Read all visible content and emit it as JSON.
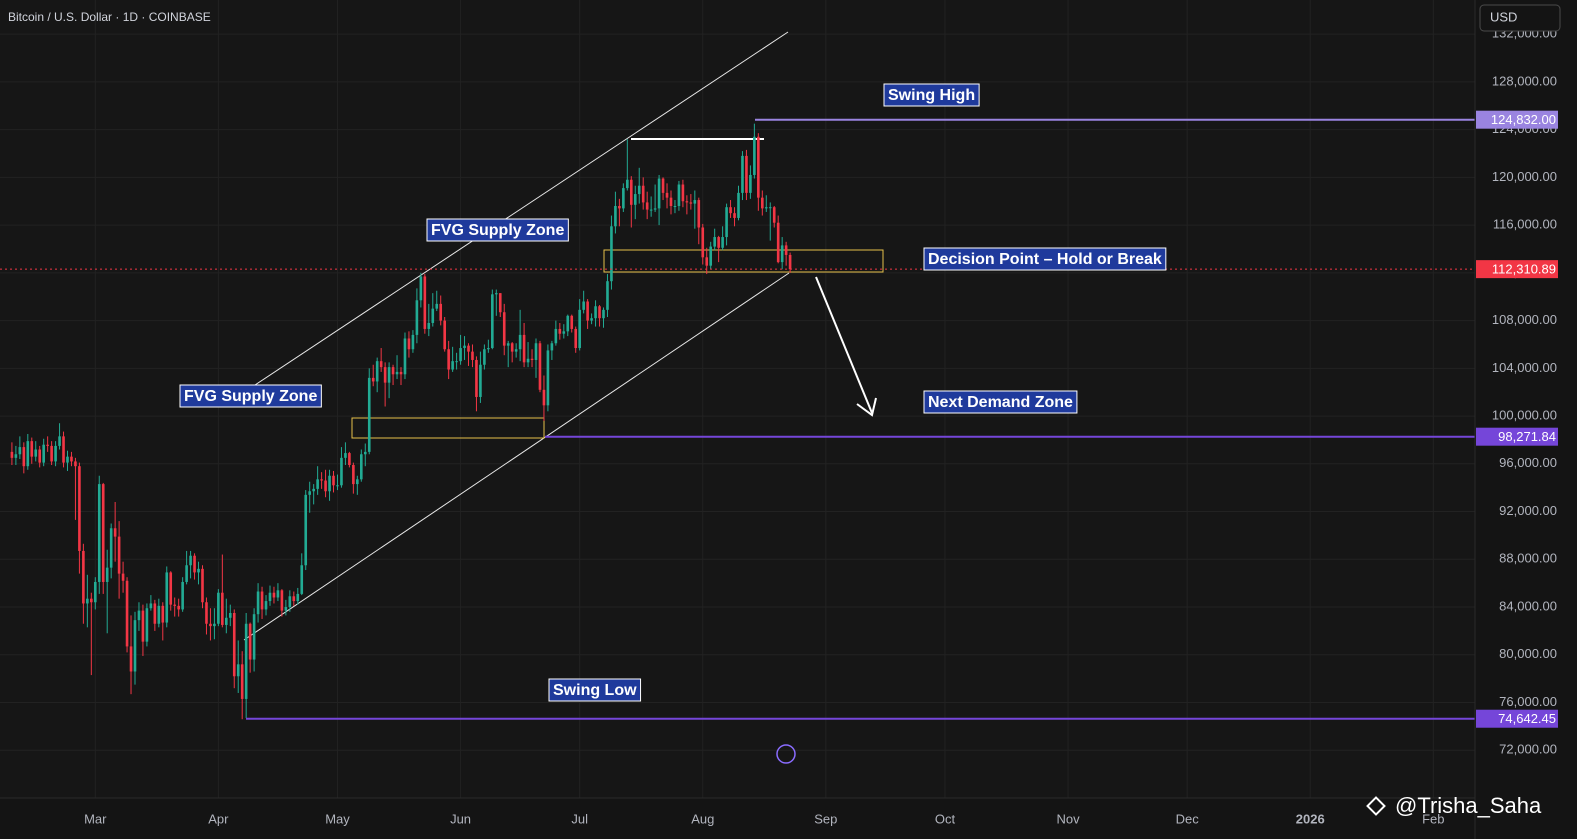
{
  "chart_data": {
    "type": "candlestick",
    "title": "Bitcoin / U.S. Dollar · 1D · COINBASE",
    "currency_button": "USD",
    "watermark": "@Trisha_Saha",
    "up_color": "#22ab94",
    "down_color": "#f23645",
    "grid": true,
    "xlim": [
      -3,
      368.5
    ],
    "ylim": [
      68000,
      134860
    ],
    "xticks": [
      {
        "value": 21,
        "label": "Mar"
      },
      {
        "value": 52,
        "label": "Apr"
      },
      {
        "value": 82,
        "label": "May"
      },
      {
        "value": 113,
        "label": "Jun"
      },
      {
        "value": 143,
        "label": "Jul"
      },
      {
        "value": 174,
        "label": "Aug"
      },
      {
        "value": 205,
        "label": "Sep"
      },
      {
        "value": 235,
        "label": "Oct"
      },
      {
        "value": 266,
        "label": "Nov"
      },
      {
        "value": 296,
        "label": "Dec"
      },
      {
        "value": 327,
        "label": "2026"
      },
      {
        "value": 358,
        "label": "Feb"
      }
    ],
    "yticks": [
      {
        "value": 72000,
        "label": "72,000.00"
      },
      {
        "value": 76000,
        "label": "76,000.00"
      },
      {
        "value": 80000,
        "label": "80,000.00"
      },
      {
        "value": 84000,
        "label": "84,000.00"
      },
      {
        "value": 88000,
        "label": "88,000.00"
      },
      {
        "value": 92000,
        "label": "92,000.00"
      },
      {
        "value": 96000,
        "label": "96,000.00"
      },
      {
        "value": 100000,
        "label": "100,000.00"
      },
      {
        "value": 104000,
        "label": "104,000.00"
      },
      {
        "value": 108000,
        "label": "108,000.00"
      },
      {
        "value": 112000,
        "label": "112,000.00"
      },
      {
        "value": 116000,
        "label": "116,000.00"
      },
      {
        "value": 120000,
        "label": "120,000.00"
      },
      {
        "value": 124000,
        "label": "124,000.00"
      },
      {
        "value": 128000,
        "label": "128,000.00"
      },
      {
        "value": 132000,
        "label": "132,000.00"
      }
    ],
    "levels": [
      {
        "value": 124832,
        "label": "124,832.00",
        "color": "#9a84e0"
      },
      {
        "value": 112310.89,
        "label": "112,310.89",
        "color": "#f23645"
      },
      {
        "value": 98271.84,
        "label": "98,271.84",
        "color": "#7546d9"
      },
      {
        "value": 74642.45,
        "label": "74,642.45",
        "color": "#7546d9"
      }
    ],
    "annotations": [
      "Swing High",
      "FVG Supply Zone",
      "Decision Point – Hold or Break",
      "FVG Supply Zone",
      "Next Demand Zone",
      "Swing Low"
    ],
    "ohlc": [
      [
        97000,
        97800,
        95900,
        96500
      ],
      [
        96500,
        97500,
        95900,
        96800
      ],
      [
        96800,
        98300,
        96400,
        97400
      ],
      [
        97400,
        97800,
        95200,
        95800
      ],
      [
        95800,
        98500,
        95500,
        97900
      ],
      [
        97900,
        98200,
        96000,
        96600
      ],
      [
        96600,
        97900,
        96200,
        97200
      ],
      [
        97200,
        97500,
        95700,
        96100
      ],
      [
        96100,
        98100,
        95800,
        97600
      ],
      [
        97600,
        98300,
        97000,
        97500
      ],
      [
        97500,
        97900,
        95900,
        96200
      ],
      [
        96200,
        97900,
        95800,
        97500
      ],
      [
        97500,
        99400,
        97200,
        98300
      ],
      [
        98300,
        98700,
        95700,
        96100
      ],
      [
        96100,
        97100,
        95400,
        96600
      ],
      [
        96600,
        97000,
        95800,
        96200
      ],
      [
        96200,
        96500,
        91300,
        95800
      ],
      [
        95800,
        96100,
        86800,
        88700
      ],
      [
        88700,
        89300,
        82600,
        84300
      ],
      [
        84300,
        86700,
        82300,
        84700
      ],
      [
        84700,
        85200,
        78300,
        84400
      ],
      [
        84400,
        86500,
        83800,
        86100
      ],
      [
        86100,
        95000,
        85100,
        94300
      ],
      [
        94300,
        94400,
        85100,
        86100
      ],
      [
        86100,
        88800,
        81800,
        87300
      ],
      [
        87300,
        91000,
        86400,
        90600
      ],
      [
        90600,
        92800,
        87800,
        89900
      ],
      [
        89900,
        91200,
        84700,
        86800
      ],
      [
        86800,
        87800,
        85200,
        86200
      ],
      [
        86200,
        86500,
        80200,
        80700
      ],
      [
        80700,
        83300,
        76700,
        78600
      ],
      [
        78600,
        83600,
        77500,
        82900
      ],
      [
        82900,
        84400,
        82000,
        83700
      ],
      [
        83700,
        84200,
        79900,
        81100
      ],
      [
        81100,
        84300,
        80700,
        83900
      ],
      [
        83900,
        85000,
        83700,
        84300
      ],
      [
        84300,
        84600,
        82000,
        82600
      ],
      [
        82600,
        84700,
        82300,
        84100
      ],
      [
        84100,
        84400,
        81200,
        82700
      ],
      [
        82700,
        87400,
        82300,
        86900
      ],
      [
        86900,
        87000,
        83700,
        84200
      ],
      [
        84200,
        84800,
        83200,
        84100
      ],
      [
        84100,
        84700,
        83200,
        83800
      ],
      [
        83800,
        86500,
        83600,
        86100
      ],
      [
        86100,
        88700,
        85900,
        87500
      ],
      [
        87500,
        88700,
        86400,
        88300
      ],
      [
        88300,
        88500,
        86300,
        86900
      ],
      [
        86900,
        87800,
        85900,
        87200
      ],
      [
        87200,
        87500,
        83900,
        84400
      ],
      [
        84400,
        84800,
        81700,
        82600
      ],
      [
        82600,
        83900,
        81200,
        82400
      ],
      [
        82400,
        83900,
        81300,
        82600
      ],
      [
        82600,
        85500,
        82400,
        85200
      ],
      [
        85200,
        88400,
        82300,
        82500
      ],
      [
        82500,
        84700,
        81800,
        83100
      ],
      [
        83100,
        84200,
        82400,
        83500
      ],
      [
        83500,
        83800,
        77200,
        78200
      ],
      [
        78200,
        81200,
        76800,
        79200
      ],
      [
        79200,
        80300,
        74600,
        76300
      ],
      [
        76300,
        83500,
        74700,
        82600
      ],
      [
        82600,
        82700,
        78500,
        79600
      ],
      [
        79600,
        83900,
        78600,
        83400
      ],
      [
        83400,
        86000,
        82700,
        85300
      ],
      [
        85300,
        85700,
        83000,
        83800
      ],
      [
        83800,
        85000,
        83300,
        84500
      ],
      [
        84500,
        85800,
        84100,
        85200
      ],
      [
        85200,
        85700,
        84300,
        84800
      ],
      [
        84800,
        86000,
        84500,
        85400
      ],
      [
        85400,
        85500,
        83200,
        83700
      ],
      [
        83700,
        84600,
        83300,
        84000
      ],
      [
        84000,
        85400,
        83600,
        84900
      ],
      [
        84900,
        85300,
        84100,
        84500
      ],
      [
        84500,
        85600,
        84200,
        85100
      ],
      [
        85100,
        88500,
        85000,
        87500
      ],
      [
        87500,
        93800,
        87100,
        93400
      ],
      [
        93400,
        94500,
        91900,
        93700
      ],
      [
        93700,
        94300,
        92600,
        93900
      ],
      [
        93900,
        95800,
        93400,
        94700
      ],
      [
        94700,
        95300,
        93900,
        94600
      ],
      [
        94600,
        95500,
        93200,
        93700
      ],
      [
        93700,
        95500,
        92900,
        95000
      ],
      [
        95000,
        95400,
        93600,
        94200
      ],
      [
        94200,
        95100,
        93800,
        94200
      ],
      [
        94200,
        97400,
        94000,
        96500
      ],
      [
        96500,
        97800,
        95900,
        96900
      ],
      [
        96900,
        97000,
        95700,
        95900
      ],
      [
        95900,
        96100,
        93500,
        94300
      ],
      [
        94300,
        95000,
        93400,
        94700
      ],
      [
        94700,
        97200,
        94500,
        96800
      ],
      [
        96800,
        97700,
        95800,
        97000
      ],
      [
        97000,
        104000,
        96800,
        103200
      ],
      [
        103200,
        104300,
        102500,
        102900
      ],
      [
        102900,
        104900,
        102000,
        104600
      ],
      [
        104600,
        105700,
        103700,
        104100
      ],
      [
        104100,
        104500,
        100800,
        102800
      ],
      [
        102800,
        104500,
        101500,
        104100
      ],
      [
        104100,
        104300,
        102600,
        103500
      ],
      [
        103500,
        105100,
        103100,
        103700
      ],
      [
        103700,
        104100,
        102600,
        103500
      ],
      [
        103500,
        107000,
        103100,
        106500
      ],
      [
        106500,
        107100,
        104900,
        105600
      ],
      [
        105600,
        107200,
        105300,
        106800
      ],
      [
        106800,
        110700,
        106100,
        109700
      ],
      [
        109700,
        112000,
        109100,
        111700
      ],
      [
        111700,
        111900,
        106900,
        107300
      ],
      [
        107300,
        109400,
        106700,
        107800
      ],
      [
        107800,
        110300,
        107500,
        109000
      ],
      [
        109000,
        110500,
        108800,
        109400
      ],
      [
        109400,
        110100,
        107600,
        108000
      ],
      [
        108000,
        108300,
        105400,
        105600
      ],
      [
        105600,
        106300,
        103100,
        103900
      ],
      [
        103900,
        105800,
        103700,
        104600
      ],
      [
        104600,
        105300,
        103900,
        104600
      ],
      [
        104600,
        106800,
        104300,
        105700
      ],
      [
        105700,
        106700,
        104700,
        105900
      ],
      [
        105900,
        106100,
        104200,
        105400
      ],
      [
        105400,
        106000,
        104100,
        104700
      ],
      [
        104700,
        105000,
        100400,
        101600
      ],
      [
        101600,
        105400,
        101100,
        104300
      ],
      [
        104300,
        106000,
        103900,
        105600
      ],
      [
        105600,
        106400,
        105300,
        105700
      ],
      [
        105700,
        110600,
        105600,
        110200
      ],
      [
        110200,
        110600,
        108400,
        110300
      ],
      [
        110300,
        110300,
        108300,
        108700
      ],
      [
        108700,
        109400,
        105100,
        105900
      ],
      [
        105900,
        106300,
        104100,
        106100
      ],
      [
        106100,
        106200,
        104500,
        105400
      ],
      [
        105400,
        106100,
        104900,
        105600
      ],
      [
        105600,
        108900,
        104600,
        106800
      ],
      [
        106800,
        107800,
        104100,
        104500
      ],
      [
        104500,
        106200,
        104100,
        104800
      ],
      [
        104800,
        105600,
        104100,
        104700
      ],
      [
        104700,
        106500,
        103200,
        106100
      ],
      [
        106100,
        106300,
        102000,
        102200
      ],
      [
        102200,
        103400,
        99600,
        100900
      ],
      [
        100900,
        106000,
        100400,
        105500
      ],
      [
        105500,
        106300,
        104700,
        106100
      ],
      [
        106100,
        108000,
        105900,
        107300
      ],
      [
        107300,
        107800,
        106400,
        106900
      ],
      [
        106900,
        107700,
        106500,
        107100
      ],
      [
        107100,
        108500,
        106700,
        108400
      ],
      [
        108400,
        108500,
        107000,
        107300
      ],
      [
        107300,
        107500,
        105300,
        105700
      ],
      [
        105700,
        109800,
        105500,
        108900
      ],
      [
        108900,
        110500,
        108600,
        109600
      ],
      [
        109600,
        109800,
        107300,
        108000
      ],
      [
        108000,
        108600,
        107700,
        108200
      ],
      [
        108200,
        109700,
        107500,
        109200
      ],
      [
        109200,
        109300,
        107500,
        108200
      ],
      [
        108200,
        109100,
        107400,
        108900
      ],
      [
        108900,
        111900,
        108300,
        111300
      ],
      [
        111300,
        116800,
        110600,
        115900
      ],
      [
        115900,
        118800,
        115300,
        117600
      ],
      [
        117600,
        118200,
        115900,
        117400
      ],
      [
        117400,
        119500,
        117100,
        119100
      ],
      [
        119100,
        123200,
        118900,
        119800
      ],
      [
        119800,
        120100,
        115800,
        117700
      ],
      [
        117700,
        119300,
        116500,
        118600
      ],
      [
        118600,
        120800,
        117800,
        119300
      ],
      [
        119300,
        120000,
        117300,
        117900
      ],
      [
        117900,
        118800,
        116500,
        117300
      ],
      [
        117300,
        118400,
        116700,
        117300
      ],
      [
        117300,
        119400,
        117100,
        117400
      ],
      [
        117400,
        120200,
        116000,
        119900
      ],
      [
        119900,
        120000,
        118100,
        118700
      ],
      [
        118700,
        119500,
        117400,
        118300
      ],
      [
        118300,
        118900,
        116900,
        117600
      ],
      [
        117600,
        118100,
        117000,
        117600
      ],
      [
        117600,
        119700,
        117200,
        119400
      ],
      [
        119400,
        119800,
        117500,
        118000
      ],
      [
        118000,
        118500,
        116900,
        117900
      ],
      [
        117900,
        118600,
        117300,
        117800
      ],
      [
        117800,
        118900,
        115700,
        118100
      ],
      [
        118100,
        118300,
        114400,
        115800
      ],
      [
        115800,
        116100,
        112700,
        113300
      ],
      [
        113300,
        114100,
        111900,
        112600
      ],
      [
        112600,
        114600,
        112300,
        114200
      ],
      [
        114200,
        115700,
        113900,
        115000
      ],
      [
        115000,
        115100,
        112900,
        114100
      ],
      [
        114100,
        115900,
        113900,
        115000
      ],
      [
        115000,
        117800,
        114300,
        117500
      ],
      [
        117500,
        118100,
        116600,
        117000
      ],
      [
        117000,
        117500,
        115900,
        116600
      ],
      [
        116600,
        119300,
        116400,
        118700
      ],
      [
        118700,
        122200,
        118100,
        121800
      ],
      [
        121800,
        122300,
        118100,
        118700
      ],
      [
        118700,
        121000,
        118200,
        120200
      ],
      [
        120200,
        124500,
        119900,
        123400
      ],
      [
        123400,
        123700,
        117200,
        118300
      ],
      [
        118300,
        118900,
        116800,
        117400
      ],
      [
        117400,
        118500,
        117100,
        117500
      ],
      [
        117500,
        117900,
        114700,
        117500
      ],
      [
        117500,
        117600,
        115800,
        116200
      ],
      [
        116200,
        116800,
        112800,
        112900
      ],
      [
        112900,
        115000,
        112300,
        114300
      ],
      [
        114300,
        114600,
        112600,
        113500
      ],
      [
        113500,
        113700,
        112000,
        112311
      ]
    ]
  }
}
